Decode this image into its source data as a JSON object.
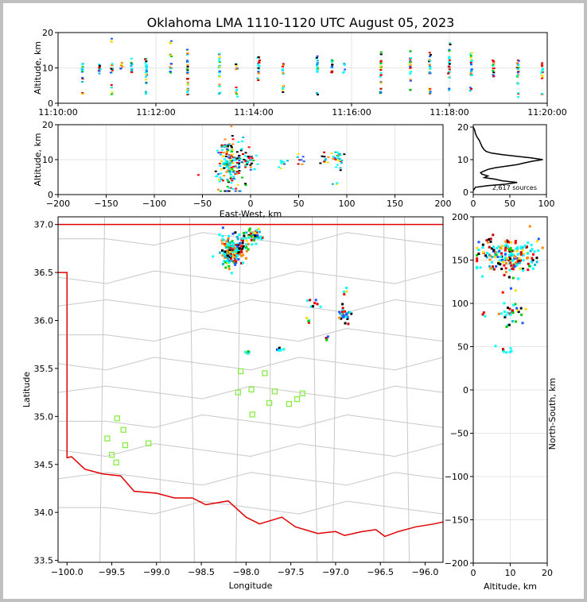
{
  "title": "Oklahoma LMA 1110-1120 UTC August 05, 2023",
  "colors": {
    "frame": "#c0c0c0",
    "boundary": "#e00000",
    "counties": "#c8c8c8",
    "stations": "#88ee44",
    "grid": "#e6e6e6",
    "text": "#000000"
  },
  "chart_data": [
    {
      "id": "time-altitude",
      "type": "scatter",
      "xlabel": "",
      "ylabel": "Altitude, km",
      "x_ticks": [
        "11:10:00",
        "11:12:00",
        "11:14:00",
        "11:16:00",
        "11:18:00",
        "11:20:00"
      ],
      "xlim_minutes": [
        0,
        10
      ],
      "ylim": [
        0,
        20
      ],
      "y_ticks": [
        0,
        10,
        20
      ],
      "grid": true,
      "columns": [
        {
          "t": 0.5,
          "y": [
            3,
            7,
            9,
            10,
            11
          ]
        },
        {
          "t": 0.85,
          "y": [
            9,
            10,
            11
          ]
        },
        {
          "t": 1.1,
          "y": [
            3,
            5,
            9,
            10,
            11,
            18
          ]
        },
        {
          "t": 1.3,
          "y": [
            10,
            11
          ]
        },
        {
          "t": 1.5,
          "y": [
            9,
            10,
            11,
            12
          ]
        },
        {
          "t": 1.8,
          "y": [
            3,
            6,
            8,
            9,
            10,
            11,
            12,
            13
          ]
        },
        {
          "t": 2.3,
          "y": [
            9,
            10,
            11,
            14,
            17
          ]
        },
        {
          "t": 2.65,
          "y": [
            3,
            4,
            6,
            7,
            9,
            10,
            11,
            12,
            14,
            15
          ]
        },
        {
          "t": 3.3,
          "y": [
            3,
            5,
            8,
            9,
            10,
            11,
            12,
            14
          ]
        },
        {
          "t": 3.65,
          "y": [
            3,
            4,
            10,
            11
          ]
        },
        {
          "t": 4.1,
          "y": [
            7,
            9,
            10,
            11,
            12,
            13
          ]
        },
        {
          "t": 4.6,
          "y": [
            4,
            5,
            9,
            10,
            11
          ]
        },
        {
          "t": 5.3,
          "y": [
            3,
            9,
            10,
            11,
            12,
            13
          ]
        },
        {
          "t": 5.6,
          "y": [
            9,
            10,
            11,
            12
          ]
        },
        {
          "t": 5.85,
          "y": [
            9,
            11
          ]
        },
        {
          "t": 6.6,
          "y": [
            3,
            4,
            6,
            8,
            9,
            10,
            11,
            12,
            14
          ]
        },
        {
          "t": 7.2,
          "y": [
            4,
            7,
            9,
            10,
            11,
            12,
            13,
            15
          ]
        },
        {
          "t": 7.6,
          "y": [
            3,
            4,
            9,
            10,
            11,
            12,
            14
          ]
        },
        {
          "t": 8.0,
          "y": [
            4,
            7,
            9,
            10,
            11,
            12,
            13,
            15,
            17
          ]
        },
        {
          "t": 8.45,
          "y": [
            4,
            8,
            9,
            10,
            11,
            12,
            13,
            14
          ]
        },
        {
          "t": 8.9,
          "y": [
            8,
            9,
            10,
            11,
            12
          ]
        },
        {
          "t": 9.4,
          "y": [
            3,
            6,
            8,
            9,
            10,
            11,
            12
          ]
        },
        {
          "t": 9.9,
          "y": [
            3,
            8,
            9,
            10,
            11
          ]
        }
      ]
    },
    {
      "id": "ew-altitude",
      "type": "scatter",
      "xlabel": "East-West, km",
      "ylabel": "Altitude, km",
      "xlim": [
        -200,
        200
      ],
      "x_ticks": [
        -200,
        -150,
        -100,
        -50,
        0,
        50,
        100,
        150,
        200
      ],
      "ylim": [
        0,
        20
      ],
      "y_ticks": [
        0,
        10,
        20
      ],
      "grid": true,
      "clusters": [
        {
          "x": -22,
          "y": 9,
          "sx": 8,
          "sy": 4,
          "n": 190
        },
        {
          "x": -3,
          "y": 9.5,
          "sx": 6,
          "sy": 1.2,
          "n": 30
        },
        {
          "x": 33,
          "y": 9,
          "sx": 3,
          "sy": 0.8,
          "n": 10
        },
        {
          "x": 52,
          "y": 10,
          "sx": 2,
          "sy": 1,
          "n": 8
        },
        {
          "x": 77,
          "y": 10.5,
          "sx": 3,
          "sy": 1,
          "n": 10
        },
        {
          "x": 91,
          "y": 10,
          "sx": 3,
          "sy": 1.5,
          "n": 28
        },
        {
          "x": 88,
          "y": 3,
          "sx": 2,
          "sy": 0.3,
          "n": 3
        }
      ]
    },
    {
      "id": "altitude-histogram",
      "type": "line",
      "xlim": [
        0,
        100
      ],
      "x_ticks": [
        0,
        50,
        100
      ],
      "ylim": [
        0,
        20
      ],
      "y_ticks": [
        0,
        10,
        20
      ],
      "annotation": "2,617 sources",
      "profile": [
        [
          0,
          0.5
        ],
        [
          3,
          1.5
        ],
        [
          20,
          2
        ],
        [
          45,
          2.5
        ],
        [
          60,
          3
        ],
        [
          40,
          3.5
        ],
        [
          30,
          4
        ],
        [
          15,
          4.5
        ],
        [
          20,
          5
        ],
        [
          12,
          5.5
        ],
        [
          10,
          6
        ],
        [
          15,
          6.5
        ],
        [
          20,
          7
        ],
        [
          30,
          7.5
        ],
        [
          45,
          8
        ],
        [
          60,
          8.5
        ],
        [
          70,
          9
        ],
        [
          80,
          9.5
        ],
        [
          95,
          10
        ],
        [
          80,
          10.5
        ],
        [
          60,
          11
        ],
        [
          40,
          11.5
        ],
        [
          25,
          12
        ],
        [
          18,
          12.5
        ],
        [
          15,
          13
        ],
        [
          12,
          14
        ],
        [
          10,
          15
        ],
        [
          8,
          16
        ],
        [
          5,
          17
        ],
        [
          3,
          18
        ],
        [
          2,
          19
        ],
        [
          0,
          20
        ]
      ]
    },
    {
      "id": "plan-view",
      "type": "scatter",
      "xlabel": "Longitude",
      "ylabel": "Latitude",
      "xlim": [
        -100.1,
        -95.8
      ],
      "x_ticks": [
        -100.0,
        -99.5,
        -99.0,
        -98.5,
        -98.0,
        -97.5,
        -97.0,
        -96.5,
        -96.0
      ],
      "x_tick_labels": [
        "−100.0",
        "−99.5",
        "−99.0",
        "−98.5",
        "−98.0",
        "−97.5",
        "−97.0",
        "−96.5",
        "−96.0"
      ],
      "ylim": [
        33.48,
        37.08
      ],
      "y_ticks": [
        33.5,
        34.0,
        34.5,
        35.0,
        35.5,
        36.0,
        36.5,
        37.0
      ],
      "y_tick_labels": [
        "33.5",
        "34.0",
        "34.5",
        "35.0",
        "35.5",
        "36.0",
        "36.5",
        "37.0"
      ],
      "stations": [
        [
          -98.06,
          35.47
        ],
        [
          -97.79,
          35.45
        ],
        [
          -98.09,
          35.25
        ],
        [
          -97.94,
          35.28
        ],
        [
          -97.68,
          35.26
        ],
        [
          -97.37,
          35.24
        ],
        [
          -97.43,
          35.18
        ],
        [
          -97.74,
          35.14
        ],
        [
          -97.52,
          35.13
        ],
        [
          -97.93,
          35.02
        ],
        [
          -99.44,
          34.98
        ],
        [
          -99.37,
          34.86
        ],
        [
          -99.55,
          34.77
        ],
        [
          -99.35,
          34.7
        ],
        [
          -99.09,
          34.72
        ],
        [
          -99.5,
          34.6
        ],
        [
          -99.45,
          34.52
        ]
      ],
      "clusters": [
        {
          "lon": -98.15,
          "lat": 36.72,
          "slon": 0.07,
          "slat": 0.07,
          "n": 170
        },
        {
          "lon": -97.92,
          "lat": 36.88,
          "slon": 0.06,
          "slat": 0.04,
          "n": 50
        },
        {
          "lon": -97.25,
          "lat": 36.18,
          "slon": 0.05,
          "slat": 0.03,
          "n": 8
        },
        {
          "lon": -96.9,
          "lat": 36.06,
          "slon": 0.04,
          "slat": 0.04,
          "n": 30
        },
        {
          "lon": -96.9,
          "lat": 36.3,
          "slon": 0.02,
          "slat": 0.02,
          "n": 4
        },
        {
          "lon": -97.1,
          "lat": 35.81,
          "slon": 0.01,
          "slat": 0.02,
          "n": 5
        },
        {
          "lon": -97.3,
          "lat": 35.98,
          "slon": 0.02,
          "slat": 0.02,
          "n": 4
        },
        {
          "lon": -97.62,
          "lat": 35.7,
          "slon": 0.02,
          "slat": 0.01,
          "n": 7
        },
        {
          "lon": -97.98,
          "lat": 35.67,
          "slon": 0.02,
          "slat": 0.01,
          "n": 5
        }
      ]
    },
    {
      "id": "altitude-ns",
      "type": "scatter",
      "xlabel": "Altitude, km",
      "ylabel": "North-South, km",
      "xlim": [
        0,
        20
      ],
      "x_ticks": [
        0,
        10,
        20
      ],
      "ylim": [
        -200,
        200
      ],
      "y_ticks": [
        -200,
        -150,
        -100,
        -50,
        0,
        50,
        100,
        150,
        200
      ],
      "y_tick_labels": [
        "−200",
        "−150",
        "−100",
        "−50",
        "0",
        "50",
        "100",
        "150",
        "200"
      ],
      "grid": true,
      "clusters": [
        {
          "x": 10,
          "y": 155,
          "sx": 4,
          "sy": 10,
          "n": 200
        },
        {
          "x": 10,
          "y": 88,
          "sx": 2,
          "sy": 5,
          "n": 25
        },
        {
          "x": 9,
          "y": 45,
          "sx": 2,
          "sy": 2,
          "n": 8
        },
        {
          "x": 9,
          "y": 75,
          "sx": 1,
          "sy": 2,
          "n": 4
        },
        {
          "x": 3,
          "y": 88,
          "sx": 0.5,
          "sy": 2,
          "n": 3
        },
        {
          "x": 11,
          "y": 115,
          "sx": 1,
          "sy": 2,
          "n": 3
        }
      ]
    }
  ]
}
